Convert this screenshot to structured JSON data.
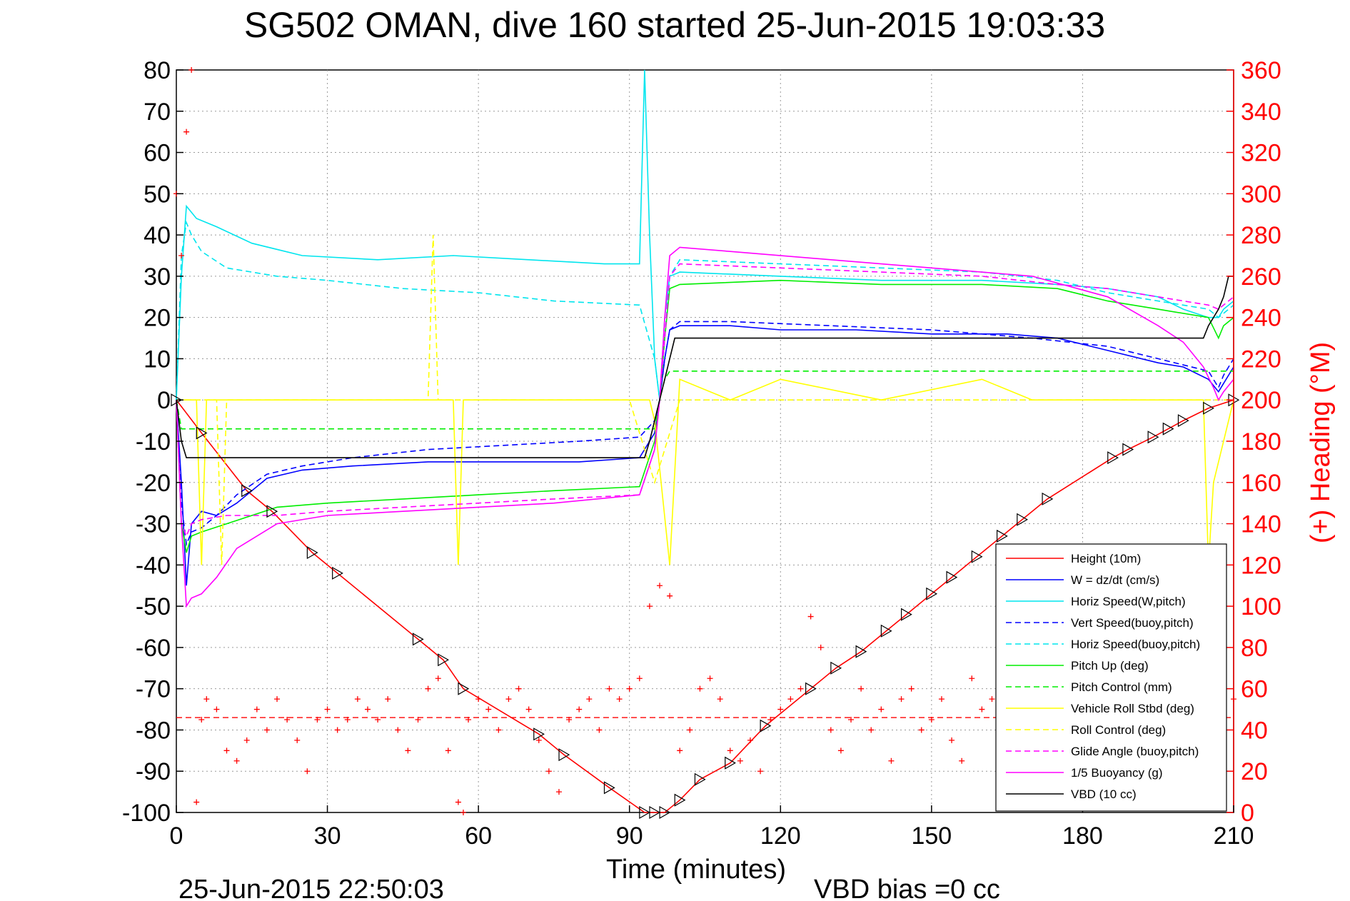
{
  "chart_data": {
    "type": "line",
    "title": "SG502 OMAN, dive 160 started 25-Jun-2015 19:03:33",
    "xlabel": "Time (minutes)",
    "ylabel": "",
    "y2label": "(+) Heading (°M)",
    "footer_left": "25-Jun-2015 22:50:03",
    "footer_right": "VBD bias =0 cc",
    "xlim": [
      0,
      210
    ],
    "ylim": [
      -100,
      80
    ],
    "y2lim": [
      0,
      360
    ],
    "x_ticks": [
      "0",
      "30",
      "60",
      "90",
      "120",
      "150",
      "180",
      "210"
    ],
    "y_ticks": [
      "80",
      "70",
      "60",
      "50",
      "40",
      "30",
      "20",
      "10",
      "0",
      "-10",
      "-20",
      "-30",
      "-40",
      "-50",
      "-60",
      "-70",
      "-80",
      "-90",
      "-100"
    ],
    "y2_ticks": [
      "360",
      "340",
      "320",
      "300",
      "280",
      "260",
      "240",
      "220",
      "200",
      "180",
      "160",
      "140",
      "120",
      "100",
      "80",
      "60",
      "40",
      "20",
      "0"
    ],
    "grid": true,
    "legend_position": "bottom-right",
    "series": [
      {
        "name": "Height (10m)",
        "color": "#ff0000",
        "style": "solid",
        "x": [
          0,
          5,
          14,
          19,
          27,
          32,
          48,
          53,
          57,
          72,
          77,
          86,
          93,
          97,
          100,
          104,
          110,
          117,
          126,
          131,
          136,
          141,
          145,
          150,
          154,
          159,
          164,
          168,
          173,
          186,
          189,
          194,
          197,
          200,
          205,
          210
        ],
        "y": [
          0,
          -8,
          -22,
          -27,
          -37,
          -42,
          -58,
          -63,
          -70,
          -81,
          -86,
          -94,
          -100,
          -100,
          -97,
          -92,
          -88,
          -79,
          -70,
          -65,
          -61,
          -56,
          -52,
          -47,
          -43,
          -38,
          -33,
          -29,
          -24,
          -14,
          -12,
          -9,
          -7,
          -5,
          -2,
          0
        ]
      },
      {
        "name": "W = dz/dt (cm/s)",
        "color": "#0000ff",
        "style": "solid",
        "x": [
          0,
          1,
          2,
          3,
          5,
          8,
          12,
          18,
          25,
          35,
          50,
          65,
          80,
          92,
          95,
          96,
          97,
          98,
          100,
          110,
          120,
          135,
          150,
          165,
          175,
          185,
          195,
          200,
          205,
          207,
          208,
          210
        ],
        "y": [
          0,
          -20,
          -45,
          -30,
          -27,
          -28,
          -25,
          -19,
          -17,
          -16,
          -15,
          -15,
          -15,
          -14,
          -8,
          0,
          10,
          17,
          18,
          18,
          17,
          17,
          16,
          16,
          15,
          12,
          9,
          8,
          5,
          2,
          4,
          8
        ]
      },
      {
        "name": "Horiz Speed(W,pitch)",
        "color": "#00e5ee",
        "style": "solid",
        "x": [
          0,
          1,
          2,
          4,
          8,
          15,
          25,
          40,
          55,
          70,
          85,
          92,
          93,
          94,
          95,
          96,
          97,
          98,
          100,
          120,
          140,
          160,
          175,
          185,
          195,
          200,
          205,
          207,
          208,
          210
        ],
        "y": [
          0,
          30,
          47,
          44,
          42,
          38,
          35,
          34,
          35,
          34,
          33,
          33,
          80,
          40,
          10,
          0,
          20,
          30,
          31,
          30,
          29,
          29,
          28,
          27,
          25,
          22,
          20,
          20,
          22,
          24
        ]
      },
      {
        "name": "Vert Speed(buoy,pitch)",
        "color": "#0000ff",
        "style": "dashed",
        "x": [
          0,
          1,
          2,
          3,
          5,
          8,
          12,
          18,
          25,
          35,
          50,
          65,
          80,
          92,
          95,
          96,
          97,
          98,
          100,
          110,
          130,
          150,
          170,
          185,
          195,
          205,
          207,
          208,
          210
        ],
        "y": [
          0,
          -25,
          -35,
          -32,
          -31,
          -28,
          -23,
          -18,
          -16,
          -14,
          -12,
          -11,
          -10,
          -9,
          -5,
          0,
          10,
          17,
          19,
          19,
          18,
          17,
          15,
          13,
          10,
          7,
          3,
          6,
          10
        ]
      },
      {
        "name": "Horiz Speed(buoy,pitch)",
        "color": "#00e5ee",
        "style": "dashed",
        "x": [
          0,
          1,
          2,
          3,
          5,
          10,
          20,
          30,
          45,
          60,
          75,
          92,
          95,
          96,
          97,
          98,
          100,
          120,
          140,
          160,
          175,
          185,
          195,
          205,
          207,
          208,
          210
        ],
        "y": [
          0,
          35,
          43,
          40,
          36,
          32,
          30,
          29,
          27,
          26,
          24,
          23,
          10,
          0,
          15,
          30,
          34,
          33,
          32,
          31,
          29,
          26,
          24,
          22,
          20,
          21,
          23
        ]
      },
      {
        "name": "Pitch Up (deg)",
        "color": "#00ee00",
        "style": "solid",
        "x": [
          0,
          1,
          2,
          3,
          5,
          10,
          20,
          30,
          45,
          60,
          75,
          92,
          95,
          96,
          97,
          98,
          100,
          120,
          140,
          160,
          175,
          185,
          195,
          205,
          207,
          208,
          210
        ],
        "y": [
          0,
          -30,
          -37,
          -33,
          -32,
          -30,
          -26,
          -25,
          -24,
          -23,
          -22,
          -21,
          -10,
          0,
          15,
          27,
          28,
          29,
          28,
          28,
          27,
          24,
          22,
          20,
          15,
          18,
          20
        ]
      },
      {
        "name": "Pitch Control (mm)",
        "color": "#00ee00",
        "style": "dashed",
        "x": [
          0,
          1,
          2,
          3,
          95,
          96,
          97,
          98,
          99,
          210
        ],
        "y": [
          0,
          -7,
          -7,
          -7,
          -7,
          0,
          5,
          7,
          7,
          7
        ]
      },
      {
        "name": "Vehicle Roll Stbd (deg)",
        "color": "#ffff00",
        "style": "solid",
        "x": [
          0,
          4,
          5,
          6,
          55,
          56,
          57,
          94,
          95,
          98,
          100,
          110,
          120,
          140,
          160,
          170,
          190,
          204,
          205,
          206,
          210
        ],
        "y": [
          0,
          0,
          -40,
          0,
          0,
          -40,
          0,
          0,
          -5,
          -40,
          5,
          0,
          5,
          0,
          5,
          0,
          0,
          0,
          -40,
          -20,
          0
        ]
      },
      {
        "name": "Roll Control (deg)",
        "color": "#ffff00",
        "style": "dashed",
        "x": [
          0,
          8,
          9,
          10,
          50,
          51,
          52,
          90,
          95,
          100,
          120,
          150,
          180,
          200,
          210
        ],
        "y": [
          0,
          0,
          -40,
          0,
          0,
          40,
          0,
          0,
          -20,
          0,
          0,
          0,
          0,
          0,
          0
        ]
      },
      {
        "name": "Glide Angle (buoy,pitch)",
        "color": "#ff00ff",
        "style": "dashed",
        "x": [
          0,
          1,
          2,
          3,
          5,
          10,
          20,
          30,
          45,
          60,
          75,
          92,
          95,
          96,
          97,
          98,
          100,
          120,
          140,
          160,
          175,
          185,
          195,
          205,
          207,
          208,
          210
        ],
        "y": [
          0,
          -30,
          -33,
          -30,
          -29,
          -28,
          -28,
          -27,
          -26,
          -25,
          -24,
          -23,
          -12,
          0,
          15,
          30,
          33,
          32,
          31,
          30,
          28,
          27,
          25,
          23,
          22,
          23,
          25
        ]
      },
      {
        "name": "1/5 Buoyancy (g)",
        "color": "#ff00ff",
        "style": "solid",
        "x": [
          0,
          1,
          2,
          3,
          5,
          8,
          12,
          20,
          30,
          45,
          60,
          75,
          92,
          95,
          96,
          97,
          98,
          100,
          110,
          130,
          150,
          170,
          185,
          195,
          200,
          204,
          206,
          207,
          208,
          210
        ],
        "y": [
          0,
          -30,
          -50,
          -48,
          -47,
          -43,
          -36,
          -30,
          -28,
          -27,
          -26,
          -25,
          -23,
          -12,
          0,
          20,
          35,
          37,
          36,
          34,
          32,
          30,
          25,
          18,
          14,
          8,
          3,
          0,
          2,
          5
        ]
      },
      {
        "name": "VBD (10 cc)",
        "color": "#000000",
        "style": "solid",
        "x": [
          0,
          1,
          2,
          93,
          94,
          95,
          96,
          97,
          98,
          99,
          100,
          204,
          205,
          206,
          207,
          208,
          209,
          210
        ],
        "y": [
          0,
          -10,
          -14,
          -14,
          -10,
          -5,
          0,
          5,
          10,
          15,
          15,
          15,
          18,
          20,
          22,
          25,
          30,
          30
        ]
      }
    ],
    "heading": {
      "color": "#ff0000",
      "marker": "+",
      "axis": "right",
      "x": [
        0,
        1,
        2,
        3,
        4,
        5,
        6,
        8,
        10,
        12,
        14,
        16,
        18,
        20,
        22,
        24,
        26,
        28,
        30,
        32,
        34,
        36,
        38,
        40,
        42,
        44,
        46,
        48,
        50,
        52,
        54,
        56,
        57,
        58,
        60,
        62,
        64,
        66,
        68,
        70,
        72,
        74,
        76,
        78,
        80,
        82,
        84,
        86,
        88,
        90,
        92,
        94,
        96,
        98,
        100,
        102,
        104,
        106,
        108,
        110,
        112,
        114,
        116,
        118,
        120,
        122,
        124,
        126,
        128,
        130,
        132,
        134,
        136,
        138,
        140,
        142,
        144,
        146,
        148,
        150,
        152,
        154,
        156,
        158,
        160,
        162,
        164,
        166,
        168,
        170,
        172,
        174,
        176,
        178,
        180,
        182,
        184,
        186,
        188,
        190,
        192,
        194,
        196,
        198,
        200,
        202,
        204,
        206,
        208,
        210
      ],
      "y": [
        300,
        270,
        330,
        360,
        5,
        45,
        55,
        50,
        30,
        25,
        35,
        50,
        40,
        55,
        45,
        35,
        20,
        45,
        50,
        40,
        45,
        55,
        50,
        45,
        55,
        40,
        30,
        45,
        60,
        65,
        30,
        5,
        0,
        45,
        55,
        50,
        40,
        55,
        60,
        50,
        35,
        20,
        10,
        45,
        50,
        55,
        40,
        60,
        55,
        60,
        65,
        100,
        110,
        105,
        30,
        40,
        60,
        65,
        55,
        30,
        25,
        35,
        20,
        45,
        50,
        55,
        60,
        95,
        80,
        40,
        30,
        45,
        60,
        40,
        50,
        25,
        55,
        60,
        40,
        45,
        55,
        35,
        25,
        65,
        50,
        55,
        60,
        45,
        50,
        40,
        55,
        45,
        40,
        60,
        45,
        35,
        55,
        40,
        45,
        60,
        50,
        35,
        25,
        45,
        55,
        40,
        50,
        45,
        50,
        55
      ]
    },
    "heading_mean_line": {
      "color": "#ff0000",
      "style": "dashed",
      "y2": 46
    },
    "markers": {
      "description": "triangle marks along Height trace",
      "color": "#000000",
      "x": [
        0,
        5,
        14,
        19,
        27,
        32,
        48,
        53,
        57,
        72,
        77,
        86,
        93,
        95,
        97,
        100,
        104,
        110,
        117,
        126,
        131,
        136,
        141,
        145,
        150,
        154,
        159,
        164,
        168,
        173,
        186,
        189,
        194,
        197,
        200,
        205,
        210
      ]
    }
  }
}
